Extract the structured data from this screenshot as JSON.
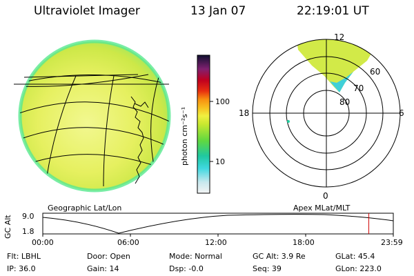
{
  "header": {
    "title": "Ultraviolet Imager",
    "date": "13 Jan 07",
    "time": "22:19:01 UT"
  },
  "colorbar": {
    "unit_label": "photon cm⁻²s⁻¹",
    "ticks": [
      "100",
      "10"
    ]
  },
  "polar": {
    "mlt_labels": [
      "12",
      "18",
      "6",
      "0"
    ],
    "lat_labels": [
      "60",
      "70",
      "80"
    ]
  },
  "map_labels": {
    "left": "Geographic Lat/Lon",
    "right": "Apex MLat/MLT"
  },
  "alt_plot": {
    "axis_label": "GC Alt",
    "ticks": [
      "9.0",
      "1.8"
    ],
    "time_ticks": [
      "00:00",
      "06:00",
      "12:00",
      "18:00",
      "23:59"
    ],
    "current_time_fraction": 0.93
  },
  "status": {
    "flt": "Flt: LBHL",
    "door": "Door: Open",
    "mode": "Mode: Normal",
    "gcalt": "GC Alt: 3.9 Re",
    "glat": "GLat:  45.4",
    "ip": "IP: 36.0",
    "gain": "Gain: 14",
    "dsp": "Dsp:  -0.0",
    "seq": "Seq: 39",
    "glon": "GLon: 223.0"
  },
  "colors": {
    "disk_fill": "#dcec3c",
    "disk_edge": "#38e8a0",
    "marker_red": "#d00000"
  }
}
